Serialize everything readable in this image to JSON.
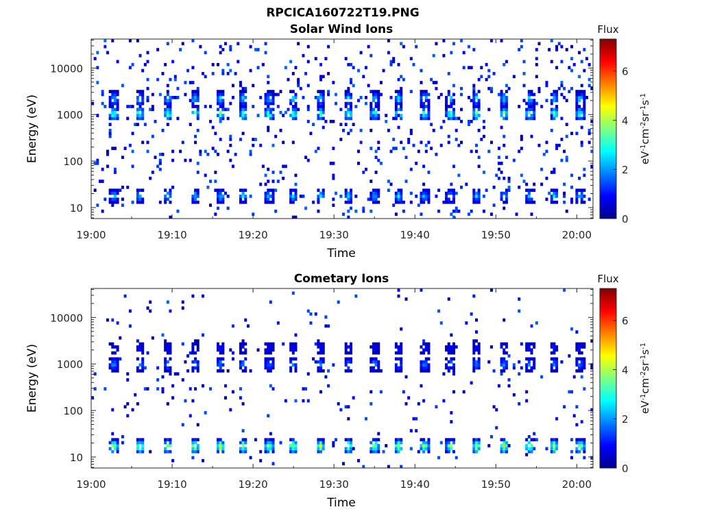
{
  "figure_title": "RPCICA160722T19.PNG",
  "colorbar": {
    "title": "Flux",
    "label_parts": [
      "eV",
      "-1",
      "cm",
      "-2",
      "sr",
      "-1",
      "s",
      "-1"
    ],
    "ticks": [
      0,
      2,
      4,
      6
    ],
    "range": [
      0,
      7.3
    ],
    "colormap": "jet",
    "colors": [
      "#00008f",
      "#0000ff",
      "#0080ff",
      "#00ffff",
      "#80ff80",
      "#ffff00",
      "#ff8000",
      "#ff0000",
      "#800000"
    ]
  },
  "chart_data": [
    {
      "type": "heatmap",
      "title": "Solar Wind Ions",
      "xlabel": "Time",
      "ylabel": "Energy (eV)",
      "xticks": [
        "19:00",
        "19:10",
        "19:20",
        "19:30",
        "19:40",
        "19:50",
        "20:00"
      ],
      "xlim": [
        "19:00",
        "20:02"
      ],
      "yticks": [
        10,
        100,
        1000,
        10000
      ],
      "ylim": [
        5.8,
        42000
      ],
      "yscale": "log",
      "grid": false,
      "scan_times": [
        "19:02.8",
        "19:06.0",
        "19:09.5",
        "19:12.8",
        "19:16.0",
        "19:18.8",
        "19:22.0",
        "19:25.0",
        "19:28.3",
        "19:31.8",
        "19:35.0",
        "19:38.0",
        "19:41.2",
        "19:44.4",
        "19:47.6",
        "19:51.0",
        "19:54.2",
        "19:57.2",
        "20:00.4"
      ],
      "populations": [
        {
          "name": "",
          "energy_center": 1050,
          "peak_flux": 4.1
        },
        {
          "name": "",
          "energy_center": 2200,
          "peak_flux": 3.0
        },
        {
          "name": "",
          "energy_center": 18,
          "peak_flux": 2.8
        }
      ],
      "background_flux_max": 1.4
    },
    {
      "type": "heatmap",
      "title": "Cometary Ions",
      "xlabel": "Time",
      "ylabel": "Energy (eV)",
      "xticks": [
        "19:00",
        "19:10",
        "19:20",
        "19:30",
        "19:40",
        "19:50",
        "20:00"
      ],
      "xlim": [
        "19:00",
        "20:02"
      ],
      "yticks": [
        10,
        100,
        1000,
        10000
      ],
      "ylim": [
        5.8,
        42000
      ],
      "yscale": "log",
      "grid": false,
      "scan_times": [
        "19:02.8",
        "19:06.0",
        "19:09.5",
        "19:12.8",
        "19:16.0",
        "19:18.8",
        "19:22.0",
        "19:25.0",
        "19:28.3",
        "19:31.8",
        "19:35.0",
        "19:38.0",
        "19:41.2",
        "19:44.4",
        "19:47.6",
        "19:51.0",
        "19:54.2",
        "19:57.2",
        "20:00.4"
      ],
      "populations": [
        {
          "name": "",
          "energy_center": 17,
          "peak_flux": 5.0
        },
        {
          "name": "",
          "energy_center": 1000,
          "peak_flux": 2.3
        },
        {
          "name": "",
          "energy_center": 2200,
          "peak_flux": 1.2
        }
      ],
      "background_flux_max": 1.3
    }
  ]
}
